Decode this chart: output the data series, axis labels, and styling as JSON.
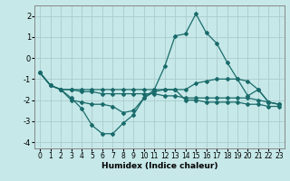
{
  "xlabel": "Humidex (Indice chaleur)",
  "xlim": [
    -0.5,
    23.5
  ],
  "ylim": [
    -4.3,
    2.5
  ],
  "yticks": [
    -4,
    -3,
    -2,
    -1,
    0,
    1,
    2
  ],
  "xticks": [
    0,
    1,
    2,
    3,
    4,
    5,
    6,
    7,
    8,
    9,
    10,
    11,
    12,
    13,
    14,
    15,
    16,
    17,
    18,
    19,
    20,
    21,
    22,
    23
  ],
  "bg_color": "#c6e8e8",
  "grid_color": "#aacccc",
  "line_color": "#1a6b6b",
  "line1_x": [
    0,
    1,
    2,
    3,
    4,
    5,
    6,
    7,
    8,
    9,
    10,
    11,
    12,
    13,
    14,
    15,
    16,
    17,
    18,
    19,
    20,
    21,
    22,
    23
  ],
  "line1_y": [
    -0.7,
    -1.3,
    -1.5,
    -1.9,
    -2.4,
    -3.2,
    -3.6,
    -3.6,
    -3.1,
    -2.7,
    -1.9,
    -1.6,
    -1.5,
    -1.5,
    -2.0,
    -2.0,
    -2.1,
    -2.1,
    -2.1,
    -2.1,
    -2.2,
    -2.2,
    -2.3,
    -2.3
  ],
  "line2_x": [
    0,
    1,
    2,
    3,
    4,
    5,
    6,
    7,
    8,
    9,
    10,
    11,
    12,
    13,
    14,
    15,
    16,
    17,
    18,
    19,
    20,
    21,
    22,
    23
  ],
  "line2_y": [
    -0.7,
    -1.3,
    -1.5,
    -1.5,
    -1.5,
    -1.5,
    -1.5,
    -1.5,
    -1.5,
    -1.5,
    -1.5,
    -1.5,
    -1.5,
    -1.5,
    -1.5,
    -1.2,
    -1.1,
    -1.0,
    -1.0,
    -1.0,
    -1.8,
    -1.5,
    -2.1,
    -2.2
  ],
  "line3_x": [
    0,
    1,
    2,
    3,
    4,
    5,
    6,
    7,
    8,
    9,
    10,
    11,
    12,
    13,
    14,
    15,
    16,
    17,
    18,
    19,
    20,
    21,
    22,
    23
  ],
  "line3_y": [
    -0.7,
    -1.3,
    -1.5,
    -1.5,
    -1.6,
    -1.6,
    -1.7,
    -1.7,
    -1.7,
    -1.7,
    -1.7,
    -1.7,
    -1.8,
    -1.8,
    -1.9,
    -1.9,
    -1.9,
    -1.9,
    -1.9,
    -1.9,
    -1.9,
    -2.0,
    -2.1,
    -2.2
  ],
  "line4_x": [
    0,
    1,
    2,
    3,
    4,
    5,
    6,
    7,
    8,
    9,
    10,
    11,
    12,
    13,
    14,
    15,
    16,
    17,
    18,
    19,
    20,
    21,
    22,
    23
  ],
  "line4_y": [
    -0.7,
    -1.3,
    -1.5,
    -2.0,
    -2.1,
    -2.2,
    -2.2,
    -2.3,
    -2.6,
    -2.5,
    -1.9,
    -1.5,
    -0.4,
    1.05,
    1.15,
    2.1,
    1.2,
    0.7,
    -0.2,
    -1.0,
    -1.1,
    -1.5,
    -2.1,
    -2.2
  ]
}
